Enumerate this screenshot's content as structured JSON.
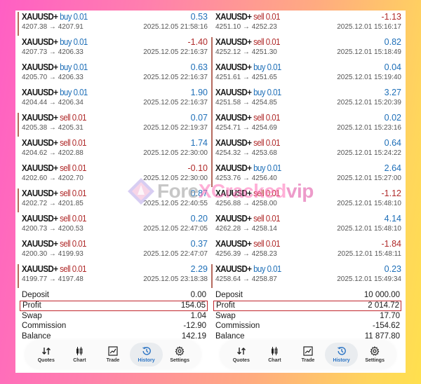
{
  "left_panel": {
    "trades": [
      {
        "symbol": "XAUUSD+",
        "side": "buy",
        "volume": "0.01",
        "side_label": "buy 0.01",
        "prices": "4207.38 → 4207.91",
        "profit": "0.53",
        "profit_sign": "pos",
        "time": "2025.12.05 21:58:16",
        "marker": true
      },
      {
        "symbol": "XAUUSD+",
        "side": "buy",
        "volume": "0.01",
        "side_label": "buy 0.01",
        "prices": "4207.73 → 4206.33",
        "profit": "-1.40",
        "profit_sign": "neg",
        "time": "2025.12.05 22:16:37",
        "marker": false
      },
      {
        "symbol": "XAUUSD+",
        "side": "buy",
        "volume": "0.01",
        "side_label": "buy 0.01",
        "prices": "4205.70 → 4206.33",
        "profit": "0.63",
        "profit_sign": "pos",
        "time": "2025.12.05 22:16:37",
        "marker": false
      },
      {
        "symbol": "XAUUSD+",
        "side": "buy",
        "volume": "0.01",
        "side_label": "buy 0.01",
        "prices": "4204.44 → 4206.34",
        "profit": "1.90",
        "profit_sign": "pos",
        "time": "2025.12.05 22:16:37",
        "marker": false
      },
      {
        "symbol": "XAUUSD+",
        "side": "sell",
        "volume": "0.01",
        "side_label": "sell 0.01",
        "prices": "4205.38 → 4205.31",
        "profit": "0.07",
        "profit_sign": "pos",
        "time": "2025.12.05 22:19:37",
        "marker": true
      },
      {
        "symbol": "XAUUSD+",
        "side": "sell",
        "volume": "0.01",
        "side_label": "sell 0.01",
        "prices": "4204.62 → 4202.88",
        "profit": "1.74",
        "profit_sign": "pos",
        "time": "2025.12.05 22:30:00",
        "marker": false
      },
      {
        "symbol": "XAUUSD+",
        "side": "sell",
        "volume": "0.01",
        "side_label": "sell 0.01",
        "prices": "4202.60 → 4202.70",
        "profit": "-0.10",
        "profit_sign": "neg",
        "time": "2025.12.05 22:30:00",
        "marker": false
      },
      {
        "symbol": "XAUUSD+",
        "side": "sell",
        "volume": "0.01",
        "side_label": "sell 0.01",
        "prices": "4202.72 → 4201.85",
        "profit": "0.87",
        "profit_sign": "pos",
        "time": "2025.12.05 22:40:55",
        "marker": true
      },
      {
        "symbol": "XAUUSD+",
        "side": "sell",
        "volume": "0.01",
        "side_label": "sell 0.01",
        "prices": "4200.73 → 4200.53",
        "profit": "0.20",
        "profit_sign": "pos",
        "time": "2025.12.05 22:47:05",
        "marker": false
      },
      {
        "symbol": "XAUUSD+",
        "side": "sell",
        "volume": "0.01",
        "side_label": "sell 0.01",
        "prices": "4200.30 → 4199.93",
        "profit": "0.37",
        "profit_sign": "pos",
        "time": "2025.12.05 22:47:07",
        "marker": false
      },
      {
        "symbol": "XAUUSD+",
        "side": "sell",
        "volume": "0.01",
        "side_label": "sell 0.01",
        "prices": "4199.77 → 4197.48",
        "profit": "2.29",
        "profit_sign": "pos",
        "time": "2025.12.05 23:18:38",
        "marker": true
      }
    ],
    "summary": {
      "deposit_label": "Deposit",
      "deposit": "0.00",
      "profit_label": "Profit",
      "profit": "154.05",
      "swap_label": "Swap",
      "swap": "1.04",
      "commission_label": "Commission",
      "commission": "-12.90",
      "balance_label": "Balance",
      "balance": "142.19"
    }
  },
  "right_panel": {
    "trades": [
      {
        "symbol": "XAUUSD+",
        "side": "sell",
        "volume": "0.01",
        "side_label": "sell 0.01",
        "prices": "4251.10 → 4252.23",
        "profit": "-1.13",
        "profit_sign": "neg",
        "time": "2025.12.01 15:16:17",
        "marker": false
      },
      {
        "symbol": "XAUUSD+",
        "side": "sell",
        "volume": "0.01",
        "side_label": "sell 0.01",
        "prices": "4252.12 → 4251.30",
        "profit": "0.82",
        "profit_sign": "pos",
        "time": "2025.12.01 15:18:49",
        "marker": true
      },
      {
        "symbol": "XAUUSD+",
        "side": "buy",
        "volume": "0.01",
        "side_label": "buy 0.01",
        "prices": "4251.61 → 4251.65",
        "profit": "0.04",
        "profit_sign": "pos",
        "time": "2025.12.01 15:19:40",
        "marker": true
      },
      {
        "symbol": "XAUUSD+",
        "side": "buy",
        "volume": "0.01",
        "side_label": "buy 0.01",
        "prices": "4251.58 → 4254.85",
        "profit": "3.27",
        "profit_sign": "pos",
        "time": "2025.12.01 15:20:39",
        "marker": true
      },
      {
        "symbol": "XAUUSD+",
        "side": "sell",
        "volume": "0.01",
        "side_label": "sell 0.01",
        "prices": "4254.71 → 4254.69",
        "profit": "0.02",
        "profit_sign": "pos",
        "time": "2025.12.01 15:23:16",
        "marker": true
      },
      {
        "symbol": "XAUUSD+",
        "side": "sell",
        "volume": "0.01",
        "side_label": "sell 0.01",
        "prices": "4254.32 → 4253.68",
        "profit": "0.64",
        "profit_sign": "pos",
        "time": "2025.12.01 15:24:22",
        "marker": true
      },
      {
        "symbol": "XAUUSD+",
        "side": "buy",
        "volume": "0.01",
        "side_label": "buy 0.01",
        "prices": "4253.76 → 4256.40",
        "profit": "2.64",
        "profit_sign": "pos",
        "time": "2025.12.01 15:27:00",
        "marker": true
      },
      {
        "symbol": "XAUUSD+",
        "side": "sell",
        "volume": "0.01",
        "side_label": "sell 0.01",
        "prices": "4256.88 → 4258.00",
        "profit": "-1.12",
        "profit_sign": "neg",
        "time": "2025.12.01 15:48:10",
        "marker": false
      },
      {
        "symbol": "XAUUSD+",
        "side": "sell",
        "volume": "0.01",
        "side_label": "sell 0.01",
        "prices": "4262.28 → 4258.14",
        "profit": "4.14",
        "profit_sign": "pos",
        "time": "2025.12.01 15:48:10",
        "marker": false
      },
      {
        "symbol": "XAUUSD+",
        "side": "sell",
        "volume": "0.01",
        "side_label": "sell 0.01",
        "prices": "4256.39 → 4258.23",
        "profit": "-1.84",
        "profit_sign": "neg",
        "time": "2025.12.01 15:48:11",
        "marker": false
      },
      {
        "symbol": "XAUUSD+",
        "side": "buy",
        "volume": "0.01",
        "side_label": "buy 0.01",
        "prices": "4258.64 → 4258.87",
        "profit": "0.23",
        "profit_sign": "pos",
        "time": "2025.12.01 15:49:34",
        "marker": true
      }
    ],
    "summary": {
      "deposit_label": "Deposit",
      "deposit": "10 000.00",
      "profit_label": "Profit",
      "profit": "2 014.72",
      "swap_label": "Swap",
      "swap": "17.70",
      "commission_label": "Commission",
      "commission": "-154.62",
      "balance_label": "Balance",
      "balance": "11 877.80"
    }
  },
  "bottom_nav": {
    "items": [
      {
        "label": "Quotes",
        "icon": "quotes-arrows-icon"
      },
      {
        "label": "Chart",
        "icon": "candlestick-icon"
      },
      {
        "label": "Trade",
        "icon": "trade-chart-icon"
      },
      {
        "label": "History",
        "icon": "history-clock-icon",
        "active": true
      },
      {
        "label": "Settings",
        "icon": "gear-icon"
      }
    ]
  },
  "watermark": {
    "part1": "Fore",
    "part2": "XCracked",
    "part3": "vip"
  },
  "colors": {
    "buy": "#1e6fb8",
    "sell": "#b02a2a",
    "positive": "#1e6fb8",
    "negative": "#b02a2a",
    "highlight_border": "#c0262d",
    "active_nav": "#2b74c4"
  }
}
